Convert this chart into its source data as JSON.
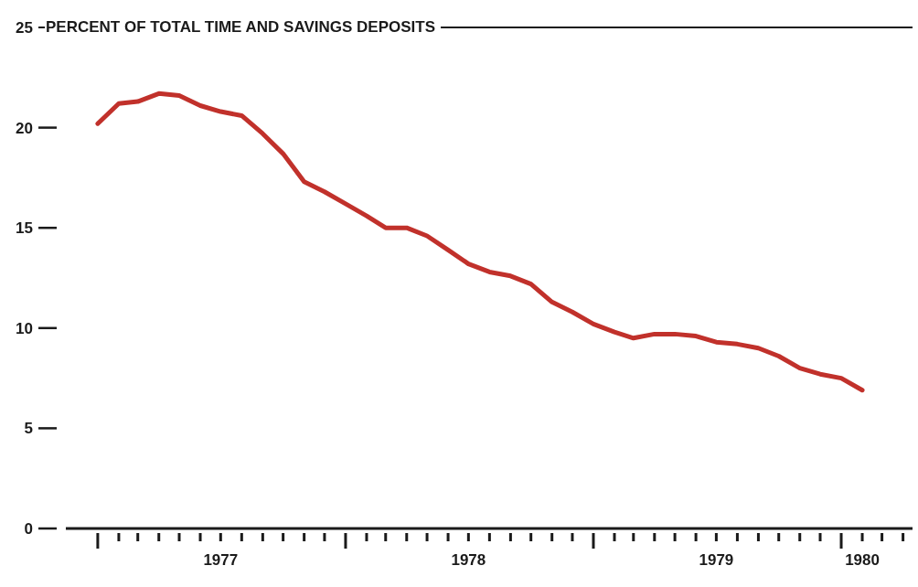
{
  "chart_data": {
    "type": "line",
    "title": "PERCENT OF TOTAL TIME AND SAVINGS DEPOSITS",
    "marker": "none",
    "x": [
      "1977-01",
      "1977-02",
      "1977-03",
      "1977-04",
      "1977-05",
      "1977-06",
      "1977-07",
      "1977-08",
      "1977-09",
      "1977-10",
      "1977-11",
      "1977-12",
      "1978-01",
      "1978-02",
      "1978-03",
      "1978-04",
      "1978-05",
      "1978-06",
      "1978-07",
      "1978-08",
      "1978-09",
      "1978-10",
      "1978-11",
      "1978-12",
      "1979-01",
      "1979-02",
      "1979-03",
      "1979-04",
      "1979-05",
      "1979-06",
      "1979-07",
      "1979-08",
      "1979-09",
      "1979-10",
      "1979-11",
      "1979-12",
      "1980-01",
      "1980-02"
    ],
    "series": [
      {
        "color": "#c1312b",
        "values": [
          20.2,
          21.2,
          21.3,
          21.7,
          21.6,
          21.1,
          20.8,
          20.6,
          19.7,
          18.7,
          17.3,
          16.8,
          16.2,
          15.6,
          15.0,
          15.0,
          14.6,
          13.9,
          13.2,
          12.8,
          12.6,
          12.2,
          11.3,
          10.8,
          10.2,
          9.8,
          9.5,
          9.7,
          9.7,
          9.6,
          9.3,
          9.2,
          9.0,
          8.6,
          8.0,
          7.7,
          7.5,
          6.9
        ]
      }
    ],
    "xlim": [
      "1976-11-15",
      "1980-04-15"
    ],
    "xticks": [
      {
        "value": "1977-01-01",
        "label": null
      },
      {
        "value": "1977-02-01",
        "label": null
      },
      {
        "value": "1977-03-01",
        "label": null
      },
      {
        "value": "1977-04-01",
        "label": null
      },
      {
        "value": "1977-05-01",
        "label": null
      },
      {
        "value": "1977-06-01",
        "label": null
      },
      {
        "value": "1977-07-01",
        "label": "1977"
      },
      {
        "value": "1977-08-01",
        "label": null
      },
      {
        "value": "1977-09-01",
        "label": null
      },
      {
        "value": "1977-10-01",
        "label": null
      },
      {
        "value": "1977-11-01",
        "label": null
      },
      {
        "value": "1977-12-01",
        "label": null
      },
      {
        "value": "1978-01-01",
        "label": null
      },
      {
        "value": "1978-02-01",
        "label": null
      },
      {
        "value": "1978-03-01",
        "label": null
      },
      {
        "value": "1978-04-01",
        "label": null
      },
      {
        "value": "1978-05-01",
        "label": null
      },
      {
        "value": "1978-06-01",
        "label": null
      },
      {
        "value": "1978-07-01",
        "label": "1978"
      },
      {
        "value": "1978-08-01",
        "label": null
      },
      {
        "value": "1978-09-01",
        "label": null
      },
      {
        "value": "1978-10-01",
        "label": null
      },
      {
        "value": "1978-11-01",
        "label": null
      },
      {
        "value": "1978-12-01",
        "label": null
      },
      {
        "value": "1979-01-01",
        "label": null
      },
      {
        "value": "1979-02-01",
        "label": null
      },
      {
        "value": "1979-03-01",
        "label": null
      },
      {
        "value": "1979-04-01",
        "label": null
      },
      {
        "value": "1979-05-01",
        "label": null
      },
      {
        "value": "1979-06-01",
        "label": null
      },
      {
        "value": "1979-07-01",
        "label": "1979"
      },
      {
        "value": "1979-08-01",
        "label": null
      },
      {
        "value": "1979-09-01",
        "label": null
      },
      {
        "value": "1979-10-01",
        "label": null
      },
      {
        "value": "1979-11-01",
        "label": null
      },
      {
        "value": "1979-12-01",
        "label": null
      },
      {
        "value": "1980-01-01",
        "label": null
      },
      {
        "value": "1980-02-01",
        "label": "1980"
      },
      {
        "value": "1980-03-01",
        "label": null
      },
      {
        "value": "1980-04-01",
        "label": null
      }
    ],
    "ylim": [
      0,
      25
    ],
    "yticks": [
      0,
      5,
      10,
      15,
      20,
      25
    ]
  }
}
